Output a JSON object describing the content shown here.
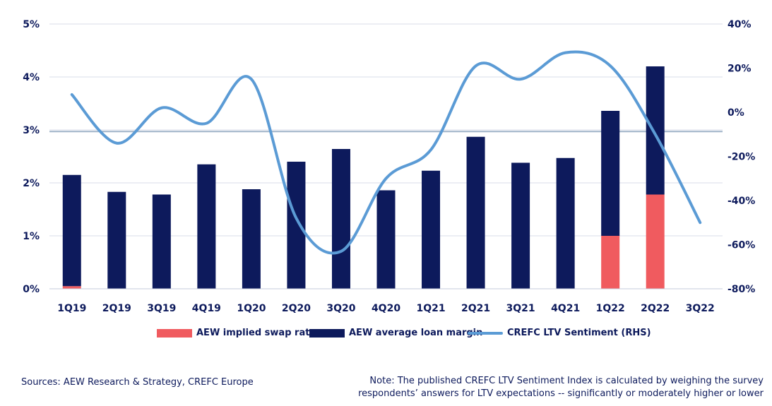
{
  "chart_data": {
    "type": "bar",
    "title": "",
    "categories": [
      "1Q19",
      "2Q19",
      "3Q19",
      "4Q19",
      "1Q20",
      "2Q20",
      "3Q20",
      "4Q20",
      "1Q21",
      "2Q21",
      "3Q21",
      "4Q21",
      "1Q22",
      "2Q22",
      "3Q22"
    ],
    "series": [
      {
        "name": "AEW implied swap rate",
        "kind": "bar",
        "stack": "a",
        "color": "#f05b5f",
        "axis": "left",
        "values": [
          0.05,
          0,
          0,
          0,
          0,
          0,
          0,
          0,
          0,
          0,
          0,
          0,
          1.0,
          1.78,
          null
        ]
      },
      {
        "name": "AEW average loan margin",
        "kind": "bar",
        "stack": "a",
        "color": "#0d1a5c",
        "axis": "left",
        "values": [
          2.1,
          1.83,
          1.78,
          2.35,
          1.88,
          2.4,
          2.64,
          1.86,
          2.23,
          2.87,
          2.38,
          2.47,
          2.36,
          2.42,
          null
        ]
      },
      {
        "name": "CREFC LTV Sentiment (RHS)",
        "kind": "line",
        "color": "#5b9bd5",
        "axis": "right",
        "values": [
          8,
          -14,
          2,
          -5,
          15,
          -48,
          -63,
          -30,
          -17,
          21,
          15,
          27,
          21,
          -10,
          -50
        ]
      }
    ],
    "left_axis": {
      "ylim": [
        0,
        5
      ],
      "ticks": [
        0,
        1,
        2,
        3,
        4,
        5
      ],
      "tick_labels": [
        "0%",
        "1%",
        "2%",
        "3%",
        "4%",
        "5%"
      ]
    },
    "right_axis": {
      "ylim": [
        -80,
        40
      ],
      "ticks": [
        -80,
        -60,
        -40,
        -20,
        0,
        20,
        40
      ],
      "tick_labels": [
        "-80%",
        "-60%",
        "-40%",
        "-20%",
        "0%",
        "20%",
        "40%"
      ]
    },
    "reference_line": {
      "value": 2.97,
      "axis": "left",
      "color": "#9fb3c8"
    },
    "grid": true,
    "legend_position": "bottom",
    "colors": {
      "text": "#0d1a5c",
      "grid": "#d9dce8",
      "axis": "#c6cbdb"
    }
  },
  "footer": {
    "sources": "Sources: AEW Research & Strategy, CREFC Europe",
    "note_line1": "Note: The published CREFC LTV Sentiment Index is calculated by weighing the survey",
    "note_line2": "respondents’ answers for LTV expectations -- significantly or moderately higher or lower"
  }
}
